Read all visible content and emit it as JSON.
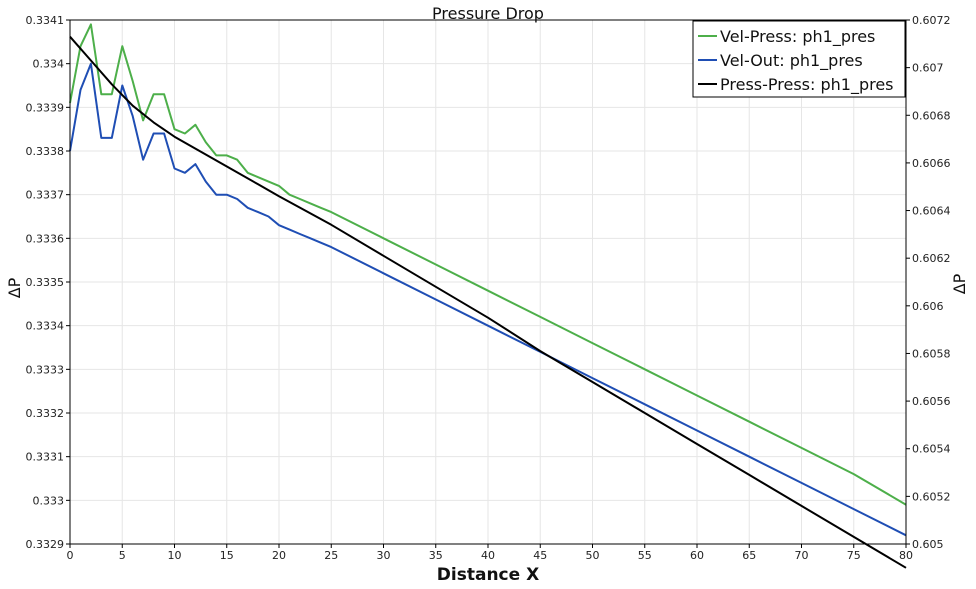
{
  "chart_data": {
    "type": "line",
    "title": "Pressure Drop",
    "xlabel": "Distance X",
    "ylabel_left": "ΔP",
    "ylabel_right": "ΔP",
    "xlim": [
      0,
      80
    ],
    "ylim_left": [
      0.3329,
      0.3341
    ],
    "ylim_right": [
      0.605,
      0.6072
    ],
    "x_ticks": [
      "0",
      "5",
      "10",
      "15",
      "20",
      "25",
      "30",
      "35",
      "40",
      "45",
      "50",
      "55",
      "60",
      "65",
      "70",
      "75",
      "80"
    ],
    "y_left_ticks": [
      "0.3329",
      "0.333",
      "0.3331",
      "0.3332",
      "0.3333",
      "0.3334",
      "0.3335",
      "0.3336",
      "0.3337",
      "0.3338",
      "0.3339",
      "0.334",
      "0.3341"
    ],
    "y_right_ticks": [
      "0.605",
      "0.6052",
      "0.6054",
      "0.6056",
      "0.6058",
      "0.606",
      "0.6062",
      "0.6064",
      "0.6066",
      "0.6068",
      "0.607",
      "0.6072"
    ],
    "grid": true,
    "legend_position": "top-right",
    "series": [
      {
        "name": "Vel-Press: ph1_pres",
        "color": "#4daf4a",
        "axis": "left",
        "x": [
          0,
          1,
          2,
          3,
          4,
          5,
          6,
          7,
          8,
          9,
          10,
          11,
          12,
          13,
          14,
          15,
          16,
          17,
          18,
          19,
          20,
          21,
          22,
          23,
          24,
          25,
          30,
          35,
          40,
          45,
          50,
          55,
          60,
          65,
          70,
          75,
          80
        ],
        "y": [
          0.33391,
          0.33404,
          0.33409,
          0.33393,
          0.33393,
          0.33404,
          0.33396,
          0.33387,
          0.33393,
          0.33393,
          0.33385,
          0.33384,
          0.33386,
          0.33382,
          0.33379,
          0.33379,
          0.33378,
          0.33375,
          0.33374,
          0.33373,
          0.33372,
          0.3337,
          0.33369,
          0.33368,
          0.33367,
          0.33366,
          0.3336,
          0.33354,
          0.33348,
          0.33342,
          0.33336,
          0.3333,
          0.33324,
          0.33318,
          0.33312,
          0.33306,
          0.33299
        ]
      },
      {
        "name": "Vel-Out: ph1_pres",
        "color": "#1f4eb4",
        "axis": "left",
        "x": [
          0,
          1,
          2,
          3,
          4,
          5,
          6,
          7,
          8,
          9,
          10,
          11,
          12,
          13,
          14,
          15,
          16,
          17,
          18,
          19,
          20,
          21,
          22,
          23,
          24,
          25,
          30,
          35,
          40,
          45,
          50,
          55,
          60,
          65,
          70,
          75,
          80
        ],
        "y": [
          0.3338,
          0.33394,
          0.334,
          0.33383,
          0.33383,
          0.33395,
          0.33388,
          0.33378,
          0.33384,
          0.33384,
          0.33376,
          0.33375,
          0.33377,
          0.33373,
          0.3337,
          0.3337,
          0.33369,
          0.33367,
          0.33366,
          0.33365,
          0.33363,
          0.33362,
          0.33361,
          0.3336,
          0.33359,
          0.33358,
          0.33352,
          0.33346,
          0.3334,
          0.33334,
          0.33328,
          0.33322,
          0.33316,
          0.3331,
          0.33304,
          0.33298,
          0.33292
        ]
      },
      {
        "name": "Press-Press: ph1_pres",
        "color": "#000000",
        "axis": "right",
        "x": [
          0,
          2,
          4,
          6,
          8,
          10,
          12,
          14,
          16,
          18,
          20,
          25,
          30,
          35,
          40,
          45,
          50,
          55,
          60,
          65,
          70,
          75,
          80
        ],
        "y": [
          0.60713,
          0.60703,
          0.60693,
          0.60684,
          0.60677,
          0.60671,
          0.60666,
          0.60661,
          0.60656,
          0.60651,
          0.60646,
          0.60634,
          0.60621,
          0.60608,
          0.60595,
          0.60581,
          0.60568,
          0.60555,
          0.60542,
          0.60529,
          0.60516,
          0.60503,
          0.6049
        ]
      }
    ]
  }
}
